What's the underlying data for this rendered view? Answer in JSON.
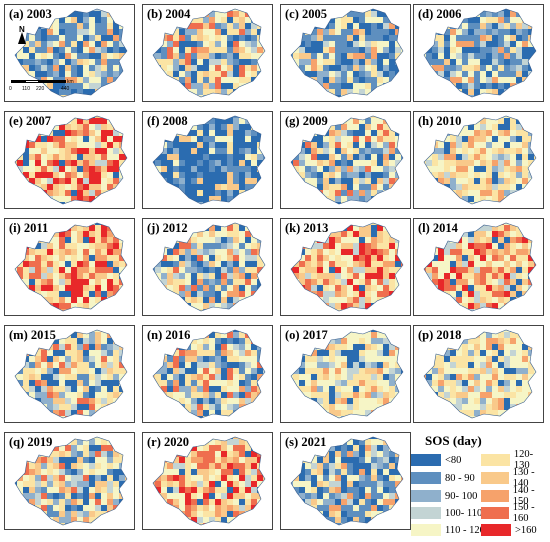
{
  "panels": [
    {
      "label": "(a) 2003",
      "scheme": "blue"
    },
    {
      "label": "(b) 2004",
      "scheme": "mixed"
    },
    {
      "label": "(c) 2005",
      "scheme": "blue"
    },
    {
      "label": "(d) 2006",
      "scheme": "blue"
    },
    {
      "label": "(e) 2007",
      "scheme": "red"
    },
    {
      "label": "(f) 2008",
      "scheme": "deepblue"
    },
    {
      "label": "(g) 2009",
      "scheme": "mixed"
    },
    {
      "label": "(h) 2010",
      "scheme": "yellow"
    },
    {
      "label": "(i) 2011",
      "scheme": "red"
    },
    {
      "label": "(j) 2012",
      "scheme": "mixed"
    },
    {
      "label": "(k) 2013",
      "scheme": "red"
    },
    {
      "label": "(l) 2014",
      "scheme": "red"
    },
    {
      "label": "(m) 2015",
      "scheme": "mixed"
    },
    {
      "label": "(n) 2016",
      "scheme": "mixed"
    },
    {
      "label": "(o) 2017",
      "scheme": "yellow"
    },
    {
      "label": "(p) 2018",
      "scheme": "yellow"
    },
    {
      "label": "(q) 2019",
      "scheme": "mixed"
    },
    {
      "label": "(r) 2020",
      "scheme": "red"
    },
    {
      "label": "(s) 2021",
      "scheme": "blue"
    }
  ],
  "map_decor": {
    "north_label": "N",
    "scale_labels": [
      "0",
      "110",
      "220",
      "440"
    ],
    "scale_unit": "km"
  },
  "legend": {
    "title": "SOS (day)",
    "items": [
      {
        "label": "<80",
        "color": "#2b6cb0"
      },
      {
        "label": "80 - 90",
        "color": "#5e8fbf"
      },
      {
        "label": "90- 100",
        "color": "#8fb0cc"
      },
      {
        "label": "100- 110",
        "color": "#c3d4d4"
      },
      {
        "label": "110 - 120",
        "color": "#f6f5c6"
      },
      {
        "label": "120- 130",
        "color": "#fbe4a4"
      },
      {
        "label": "130 - 140",
        "color": "#f9c98a"
      },
      {
        "label": "140 - 150",
        "color": "#f6a26b"
      },
      {
        "label": "150 - 160",
        "color": "#ef6e4e"
      },
      {
        "label": ">160",
        "color": "#e8282a"
      }
    ]
  }
}
